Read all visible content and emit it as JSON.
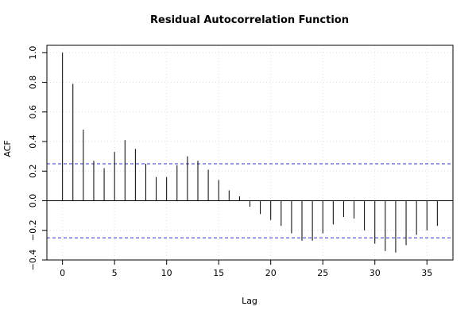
{
  "chart_data": {
    "type": "bar",
    "title": "Residual Autocorrelation Function",
    "xlabel": "Lag",
    "ylabel": "ACF",
    "xlim": [
      -1.5,
      37.5
    ],
    "ylim": [
      -0.4,
      1.05
    ],
    "x_ticks": [
      0,
      5,
      10,
      15,
      20,
      25,
      30,
      35
    ],
    "y_ticks": [
      -0.4,
      -0.2,
      0.0,
      0.2,
      0.4,
      0.6,
      0.8,
      1.0
    ],
    "x_tick_labels": [
      "0",
      "5",
      "10",
      "15",
      "20",
      "25",
      "30",
      "35"
    ],
    "y_tick_labels": [
      "−0.4",
      "−0.2",
      "0.0",
      "0.2",
      "0.4",
      "0.6",
      "0.8",
      "1.0"
    ],
    "grid": true,
    "confidence_bound": 0.25,
    "colors": {
      "bars": "#000000",
      "confidence": "#3333cc",
      "grid": "#dddddd",
      "axis": "#000000"
    },
    "lags": [
      0,
      1,
      2,
      3,
      4,
      5,
      6,
      7,
      8,
      9,
      10,
      11,
      12,
      13,
      14,
      15,
      16,
      17,
      18,
      19,
      20,
      21,
      22,
      23,
      24,
      25,
      26,
      27,
      28,
      29,
      30,
      31,
      32,
      33,
      34,
      35,
      36
    ],
    "values": [
      1.0,
      0.79,
      0.48,
      0.27,
      0.22,
      0.33,
      0.41,
      0.35,
      0.25,
      0.16,
      0.16,
      0.24,
      0.3,
      0.27,
      0.21,
      0.14,
      0.07,
      0.03,
      -0.04,
      -0.09,
      -0.13,
      -0.17,
      -0.22,
      -0.27,
      -0.27,
      -0.22,
      -0.16,
      -0.11,
      -0.12,
      -0.2,
      -0.29,
      -0.34,
      -0.35,
      -0.3,
      -0.23,
      -0.2,
      -0.17
    ]
  }
}
